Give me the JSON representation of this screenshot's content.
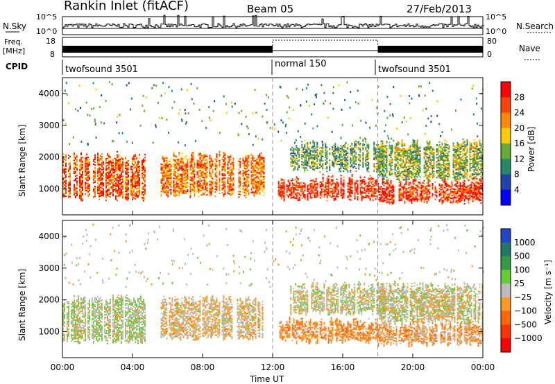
{
  "header": {
    "title": "Rankin Inlet (fitACF)",
    "beam": "Beam 05",
    "date": "27/Feb/2013"
  },
  "nsky_panel": {
    "label": "N.Sky",
    "left_ticks": [
      "10^5",
      "10^0"
    ],
    "right_ticks": [
      "10^5",
      "10^0"
    ],
    "right_label": "N.Search"
  },
  "freq_panel": {
    "label_line1": "Freq.",
    "label_line2": "[MHz]",
    "left_ticks": [
      "18",
      "8"
    ],
    "right_ticks": [
      "80",
      "0"
    ],
    "right_label": "Nave"
  },
  "cpid_panel": {
    "label": "CPID",
    "segments": [
      "twofsound 3501",
      "normal 150",
      "twofsound 3501"
    ]
  },
  "power_panel": {
    "ylabel": "Slant Range [km]",
    "yticks": [
      "4000",
      "3000",
      "2000",
      "1000"
    ],
    "colorbar_label": "Power [dB]",
    "colorbar_ticks": [
      "28",
      "24",
      "20",
      "16",
      "12",
      "8",
      "4"
    ],
    "colorbar_colors": [
      "#ff0000",
      "#ff4400",
      "#ff8800",
      "#ffcc00",
      "#66aa33",
      "#228866",
      "#2244aa",
      "#0000ff"
    ]
  },
  "velocity_panel": {
    "ylabel": "Slant Range [km]",
    "yticks": [
      "4000",
      "3000",
      "2000",
      "1000"
    ],
    "colorbar_label": "Velocity [m s⁻¹]",
    "colorbar_ticks": [
      "1000",
      "500",
      "100",
      "25",
      "−25",
      "−100",
      "−500",
      "−1000"
    ],
    "colorbar_colors": [
      "#2244cc",
      "#227766",
      "#339944",
      "#66cc33",
      "#bbbbbb",
      "#ff9922",
      "#ff6600",
      "#ff3300",
      "#ff0000"
    ]
  },
  "xaxis": {
    "label": "Time UT",
    "ticks": [
      "00:00",
      "04:00",
      "08:00",
      "12:00",
      "16:00",
      "20:00",
      "00:00"
    ]
  },
  "chart_data": {
    "type": "heatmap",
    "title": "Rankin Inlet (fitACF)",
    "xlabel": "Time UT",
    "ylabel": "Slant Range [km]",
    "x_range_hours": [
      0,
      24
    ],
    "y_range_km": [
      180,
      4500
    ],
    "mode_changes_hours": [
      12.0,
      18.0
    ],
    "cpid_modes": [
      {
        "start_hour": 0,
        "end_hour": 12,
        "name": "twofsound 3501"
      },
      {
        "start_hour": 12,
        "end_hour": 18,
        "name": "normal 150"
      },
      {
        "start_hour": 18,
        "end_hour": 24,
        "name": "twofsound 3501"
      }
    ],
    "power_db_range": [
      0,
      30
    ],
    "velocity_ms_range": [
      -1000,
      1000
    ],
    "scatter_regions": [
      {
        "start_hour": 0.0,
        "end_hour": 4.7,
        "range_km": [
          700,
          2000
        ],
        "power_db": 24,
        "velocity_ms": 50
      },
      {
        "start_hour": 5.6,
        "end_hour": 11.5,
        "range_km": [
          800,
          2000
        ],
        "power_db": 22,
        "velocity_ms": -100
      },
      {
        "start_hour": 12.3,
        "end_hour": 18.0,
        "range_km": [
          700,
          1300
        ],
        "power_db": 26,
        "velocity_ms": -300
      },
      {
        "start_hour": 13.0,
        "end_hour": 18.5,
        "range_km": [
          1600,
          2400
        ],
        "power_db": 12,
        "velocity_ms": 0
      },
      {
        "start_hour": 18.0,
        "end_hour": 24.0,
        "range_km": [
          600,
          1200
        ],
        "power_db": 26,
        "velocity_ms": -200
      },
      {
        "start_hour": 18.0,
        "end_hour": 24.0,
        "range_km": [
          1300,
          2400
        ],
        "power_db": 14,
        "velocity_ms": -20
      }
    ]
  }
}
